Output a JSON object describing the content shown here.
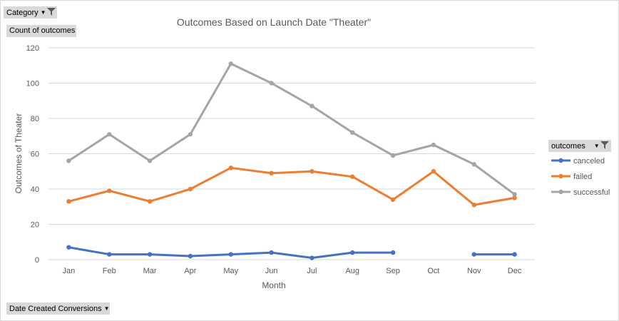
{
  "pivot": {
    "category_label": "Category",
    "count_label": "Count of outcomes",
    "date_label": "Date Created Conversions",
    "outcomes_label": "outcomes"
  },
  "chart_data": {
    "type": "line",
    "title": "Outcomes Based on Launch Date \"Theater\"",
    "xlabel": "Month",
    "ylabel": "Outcomes of Theater",
    "categories": [
      "Jan",
      "Feb",
      "Mar",
      "Apr",
      "May",
      "Jun",
      "Jul",
      "Aug",
      "Sep",
      "Oct",
      "Nov",
      "Dec"
    ],
    "ylim": [
      0,
      120
    ],
    "yticks": [
      0,
      20,
      40,
      60,
      80,
      100,
      120
    ],
    "grid": true,
    "legend_position": "right",
    "series": [
      {
        "name": "canceled",
        "color": "#4472c4",
        "values": [
          7,
          3,
          3,
          2,
          3,
          4,
          1,
          4,
          4,
          null,
          3,
          3
        ]
      },
      {
        "name": "failed",
        "color": "#ed7d31",
        "values": [
          33,
          39,
          33,
          40,
          52,
          49,
          50,
          47,
          34,
          50,
          31,
          35
        ]
      },
      {
        "name": "successful",
        "color": "#a5a5a5",
        "values": [
          56,
          71,
          56,
          71,
          111,
          100,
          87,
          72,
          59,
          65,
          54,
          37
        ]
      }
    ]
  }
}
